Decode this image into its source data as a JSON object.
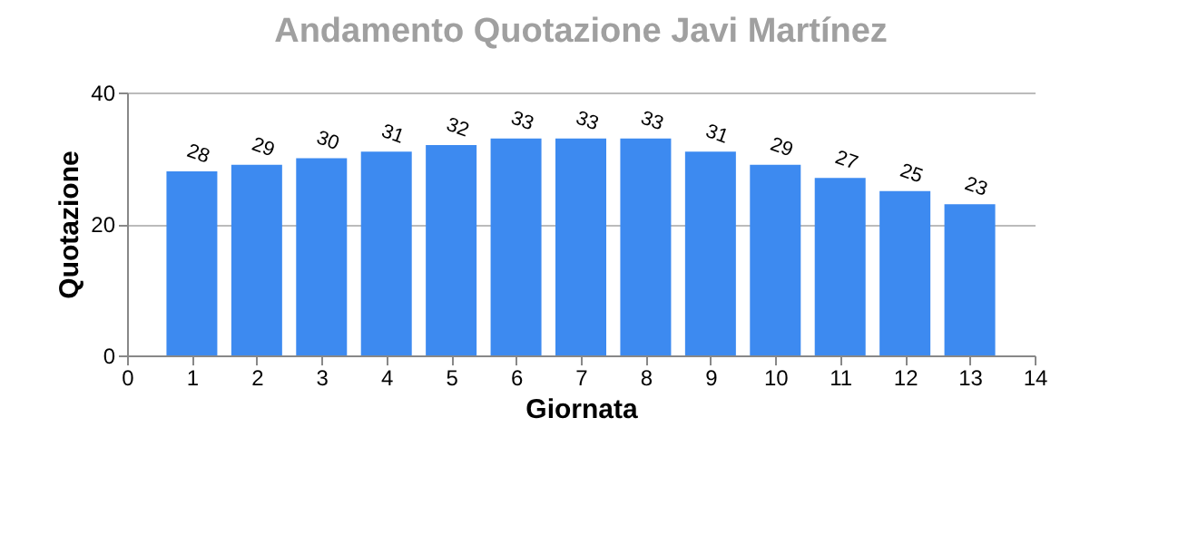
{
  "chart_data": {
    "type": "bar",
    "title": "Andamento Quotazione Javi Martínez",
    "xlabel": "Giornata",
    "ylabel": "Quotazione",
    "x": [
      1,
      2,
      3,
      4,
      5,
      6,
      7,
      8,
      9,
      10,
      11,
      12,
      13
    ],
    "values": [
      28,
      29,
      30,
      31,
      32,
      33,
      33,
      33,
      31,
      29,
      27,
      25,
      23
    ],
    "color": "#3d8af0",
    "xlim": [
      0,
      14
    ],
    "xticks": [
      0,
      1,
      2,
      3,
      4,
      5,
      6,
      7,
      8,
      9,
      10,
      11,
      12,
      13,
      14
    ],
    "ylim": [
      0,
      40
    ],
    "yticks": [
      0,
      20,
      40
    ],
    "grid": "y",
    "data_labels": true
  }
}
